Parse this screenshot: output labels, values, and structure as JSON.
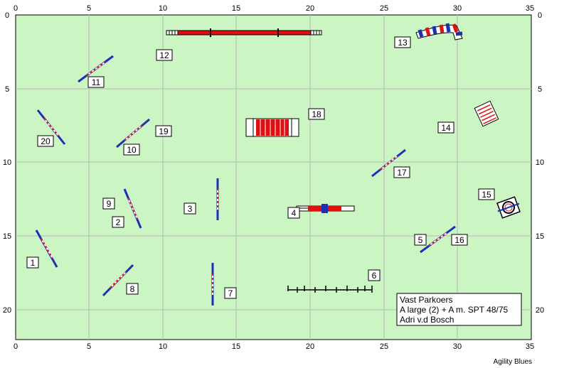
{
  "x_ticks": [
    "0",
    "5",
    "10",
    "15",
    "20",
    "25",
    "30",
    "35"
  ],
  "y_ticks": [
    "0",
    "5",
    "10",
    "15",
    "20"
  ],
  "info_box": {
    "line1": "Vast Parkoers",
    "line2": "A large (2) + A m. SPT 48/75",
    "line3": "Adri v.d Bosch"
  },
  "footer": "Agility Blues",
  "colors": {
    "field": "#ccf5c4",
    "grid": "#b8b8b8",
    "hurdle_pole": "#1c2fb8",
    "bar_red": "#e01010"
  },
  "obstacle_numbers": [
    "1",
    "2",
    "3",
    "4",
    "5",
    "6",
    "7",
    "8",
    "9",
    "10",
    "11",
    "12",
    "13",
    "14",
    "15",
    "16",
    "17",
    "18",
    "19",
    "20"
  ]
}
